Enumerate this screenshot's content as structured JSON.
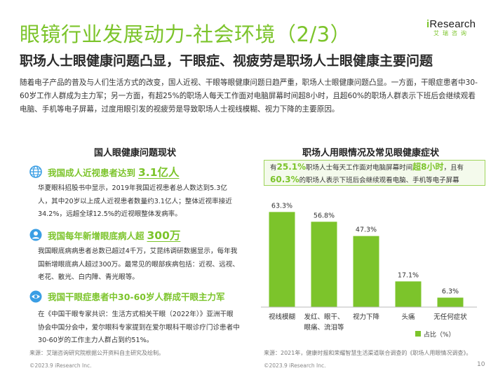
{
  "header": {
    "title": "眼镜行业发展动力-社会环境（2/3）",
    "subtitle": "职场人士眼健康问题凸显，干眼症、视疲劳是职场人士眼健康主要问题"
  },
  "logo": {
    "main_i": "i",
    "main_rest": "Research",
    "sub": "艾瑞咨询"
  },
  "intro": "随着电子产品的普及与人们生活方式的改变，国人近视、干眼等眼健康问题日趋严重，职场人士眼健康问题凸显。一方面，干眼症患者中30-60岁工作人群成为主力军；另一方面，有超25%的职场人每天工作面对电脑屏幕时间超8小时，且超60%的职场人群表示下班后会继续观看电脑、手机等电子屏幕，过度用眼引发的视疲劳是导致职场人士视线模糊、视力下降的主要原因。",
  "left_section": {
    "title": "国人眼健康问题现状",
    "items": [
      {
        "head": "我国成人近视患者达到",
        "big": "3.1亿人",
        "body": "华夏眼科招股书中显示，2019年我国近视患者总人数达到5.3亿人，其中20岁以上成人近视患者数量约3.1亿人；整体近视率接近34.2%，远超全球12.5%的近视眼整体发病率。"
      },
      {
        "head": "我国每年新增眼底病人超",
        "big": "300万",
        "body": "我国眼底病病患者总数已超过4千万，艾昆纬调研数据显示，每年我国新增眼底病人超过300万。最常见的眼部疾病包括：近视、远视、老花、散光、白内障、青光眼等。"
      },
      {
        "head": "我国干眼症患者中30-60岁人群成干眼主力军",
        "big": "",
        "body": "在《中国干眼专家共识：生活方式相关干眼（2022年）》亚洲干眼协会中国分会中，爱尔眼科专家提到在爱尔眼科干眼诊疗门诊患者中30-60岁的工作主力人群占到约51%。"
      }
    ],
    "source": "来源：艾瑞咨询研究院根据公开资料自主研究及绘制。"
  },
  "right_section": {
    "title": "职场人用眼情况及常见眼健康症状",
    "callout": {
      "pre1": "有",
      "hl1": "25.1%",
      "mid1": "职场人士每天工作面对电脑屏幕时间",
      "hl2": "超8小时",
      "post1": "，且有",
      "hl3": "60.3%",
      "post2": "的职场人表示下班后会继续观看电脑、手机等电子屏幕"
    },
    "source": "来源：2021年，健康时报和荣耀智慧生活渠道联合调查的《职场人用眼情况调查》。"
  },
  "chart_data": {
    "type": "bar",
    "categories": [
      "视线模糊",
      "发红、眼干、眼痛、流泪等",
      "视力下降",
      "头痛",
      "无任何症状"
    ],
    "category_lines": [
      [
        "视线模糊"
      ],
      [
        "发红、眼干、",
        "眼痛、流泪等"
      ],
      [
        "视力下降"
      ],
      [
        "头痛"
      ],
      [
        "无任何症状"
      ]
    ],
    "values": [
      63.3,
      56.8,
      47.3,
      17.1,
      6.3
    ],
    "value_labels": [
      "63.3%",
      "56.8%",
      "47.3%",
      "17.1%",
      "6.3%"
    ],
    "series": [
      {
        "name": "占比（%）",
        "values": [
          63.3,
          56.8,
          47.3,
          17.1,
          6.3
        ]
      }
    ],
    "ylim": [
      0,
      70
    ],
    "grid": false,
    "legend_position": "bottom-right",
    "bar_color": "#7cc42b"
  },
  "footer": {
    "left": "©2023.9 iResearch Inc.",
    "right": "©2023.9 iResearch Inc.",
    "page": "10"
  },
  "colors": {
    "accent": "#7cc42b",
    "callout_bg": "#f4faec",
    "icon": "#3a9ee4"
  },
  "icons": [
    "globe-icon",
    "head-icon",
    "eye-icon"
  ]
}
